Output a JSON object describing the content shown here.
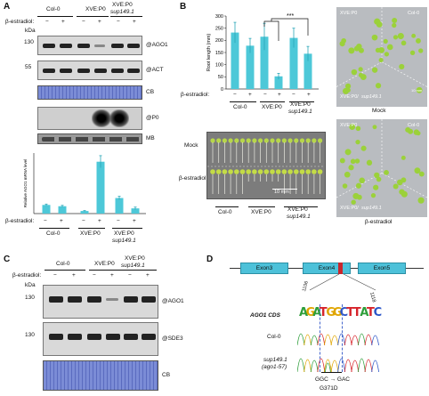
{
  "panels": {
    "A": {
      "letter": "A",
      "groups": [
        "Col-0",
        "XVE:P0",
        "XVE:P0",
        "sup149.1"
      ],
      "treatment_label": "β-estradiol:",
      "signs": [
        "−",
        "+",
        "−",
        "+",
        "−",
        "+"
      ],
      "kda_label": "kDa",
      "markers": [
        "130",
        "55"
      ],
      "blot_labels": [
        "@AGO1",
        "@ACT",
        "CB",
        "@P0",
        "MB"
      ],
      "ylabel": "Relative AGO1 mRNA level",
      "bottom_groups": [
        "Col-0",
        "XVE:P0",
        "XVE:P0",
        "sup149.1"
      ]
    },
    "B": {
      "letter": "B",
      "ylabel": "Root length (mm)",
      "significance": "***",
      "treatment_label": "β-estradiol:",
      "signs": [
        "−",
        "+",
        "−",
        "+",
        "−",
        "+"
      ],
      "groups": [
        "Col-0",
        "XVE:P0",
        "XVE:P0",
        "sup149.1"
      ],
      "photo_labels": [
        "Mock",
        "β-estradiol"
      ],
      "scale_bar": "10 mm",
      "photo_groups": [
        "Col-0",
        "XVE:P0",
        "XVE:P0",
        "sup149.1"
      ],
      "plate_labels": [
        "XVE:P0",
        "Col-0",
        "XVE:P0/",
        "sup149.1"
      ],
      "plate_scale": "10 mm",
      "plate_captions": [
        "Mock",
        "β-estradiol"
      ]
    },
    "C": {
      "letter": "C",
      "groups": [
        "Col-0",
        "XVE:P0",
        "XVE:P0",
        "sup149.1"
      ],
      "treatment_label": "β-estradiol:",
      "signs": [
        "−",
        "+",
        "−",
        "+",
        "−",
        "+"
      ],
      "kda_label": "kDa",
      "markers": [
        "130",
        "130"
      ],
      "blot_labels": [
        "@AGO1",
        "@SDE3",
        "CB"
      ]
    },
    "D": {
      "letter": "D",
      "exons": [
        "Exon3",
        "Exon4",
        "Exon5"
      ],
      "positions": [
        "1106",
        "1118"
      ],
      "cds_label": "AGO1 CDS",
      "sequence": [
        "A",
        "G",
        "A",
        "T",
        "G",
        "G",
        "C",
        "T",
        "T",
        "A",
        "T",
        "C"
      ],
      "base_colors": {
        "A": "#2e9e3a",
        "G": "#e0a500",
        "T": "#d6242b",
        "C": "#2b55c7"
      },
      "trace_labels": [
        "Col-0",
        "sup149.1",
        "(ago1-57)"
      ],
      "mutation": "GGC → GAC",
      "mutation_aa": "G371D"
    }
  },
  "chart_data": [
    {
      "type": "bar",
      "panel": "A",
      "ylabel": "Relative AGO1 mRNA level",
      "ylim": [
        0,
        7
      ],
      "categories": [
        "Col-0 −",
        "Col-0 +",
        "XVE:P0 −",
        "XVE:P0 +",
        "XVE:P0 sup149.1 −",
        "XVE:P0 sup149.1 +"
      ],
      "values": [
        1.0,
        0.85,
        0.3,
        6.0,
        1.8,
        0.6
      ],
      "errors": [
        0.1,
        0.1,
        0.05,
        0.7,
        0.2,
        0.15
      ],
      "color": "#4dc8d8"
    },
    {
      "type": "bar",
      "panel": "B",
      "ylabel": "Root length (mm)",
      "ylim": [
        0,
        300
      ],
      "yticks": [
        0,
        50,
        100,
        150,
        200,
        250,
        300
      ],
      "categories": [
        "Col-0 −",
        "Col-0 +",
        "XVE:P0 −",
        "XVE:P0 +",
        "XVE:P0 sup149.1 −",
        "XVE:P0 sup149.1 +"
      ],
      "values": [
        232,
        178,
        215,
        52,
        210,
        145
      ],
      "errors": [
        42,
        30,
        55,
        12,
        40,
        30
      ],
      "color": "#4dc8d8"
    }
  ]
}
